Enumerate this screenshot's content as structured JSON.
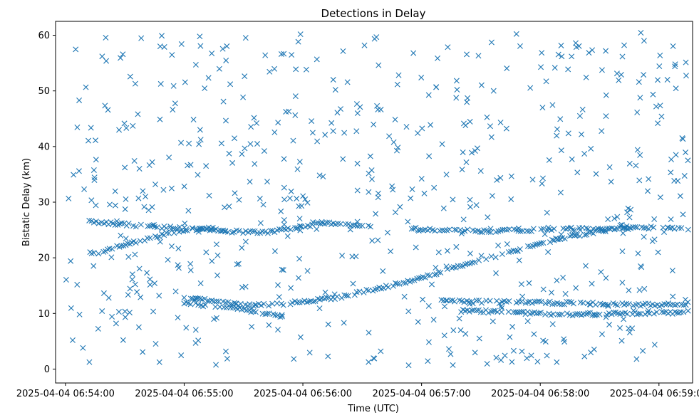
{
  "chart_data": {
    "type": "scatter",
    "title": "Detections in Delay",
    "xlabel": "Time (UTC)",
    "ylabel": "Bistatic Delay (km)",
    "marker": "x",
    "color": "#1f77b4",
    "grid": false,
    "legend": "none",
    "x_unit": "seconds after 2025-04-04 06:54:00",
    "xlim": [
      -5,
      317
    ],
    "ylim": [
      -2.5,
      62.5
    ],
    "x_ticks": [
      {
        "value": 0,
        "label": "2025-04-04 06:54:00"
      },
      {
        "value": 60,
        "label": "2025-04-04 06:55:00"
      },
      {
        "value": 120,
        "label": "2025-04-04 06:56:00"
      },
      {
        "value": 180,
        "label": "2025-04-04 06:57:00"
      },
      {
        "value": 240,
        "label": "2025-04-04 06:58:00"
      },
      {
        "value": 300,
        "label": "2025-04-04 06:59:00"
      }
    ],
    "y_ticks": [
      {
        "value": 0,
        "label": "0"
      },
      {
        "value": 10,
        "label": "10"
      },
      {
        "value": 20,
        "label": "20"
      },
      {
        "value": 30,
        "label": "30"
      },
      {
        "value": 40,
        "label": "40"
      },
      {
        "value": 50,
        "label": "50"
      },
      {
        "value": 60,
        "label": "60"
      }
    ],
    "tracks": [
      {
        "x": [
          12,
          40,
          60,
          75
        ],
        "y": [
          20.5,
          23.3,
          25.0,
          25.5
        ]
      },
      {
        "x": [
          12,
          40,
          70,
          100,
          130,
          155
        ],
        "y": [
          26.5,
          25.7,
          25.0,
          24.5,
          26.2,
          25.8
        ]
      },
      {
        "x": [
          60,
          90,
          110,
          140,
          170,
          200,
          230,
          250
        ],
        "y": [
          13.0,
          11.5,
          11.7,
          13.0,
          15.5,
          18.5,
          21.5,
          23.5
        ]
      },
      {
        "x": [
          250,
          270,
          290
        ],
        "y": [
          23.5,
          24.8,
          25.8
        ]
      },
      {
        "x": [
          175,
          210,
          240,
          270,
          300,
          315
        ],
        "y": [
          25.2,
          24.8,
          25.0,
          25.2,
          25.5,
          25.3
        ]
      },
      {
        "x": [
          190,
          230,
          265,
          300,
          315
        ],
        "y": [
          12.2,
          12.0,
          11.8,
          11.5,
          11.8
        ]
      },
      {
        "x": [
          200,
          225,
          250,
          280,
          315
        ],
        "y": [
          10.5,
          10.2,
          9.8,
          10.0,
          10.2
        ]
      },
      {
        "x": [
          60,
          85,
          110
        ],
        "y": [
          11.8,
          11.0,
          9.5
        ]
      }
    ],
    "clutter_count": 620,
    "clutter_range": {
      "x": [
        0,
        315
      ],
      "y": [
        0.5,
        60.5
      ]
    }
  }
}
